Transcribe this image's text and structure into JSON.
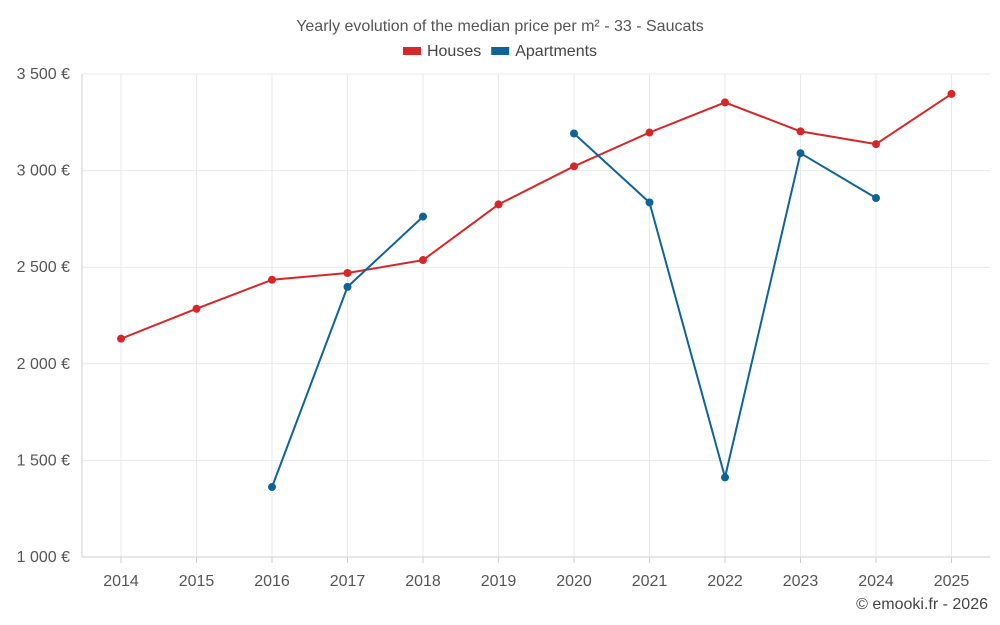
{
  "chart_data": {
    "type": "line",
    "title": "Yearly evolution of the median price per m² - 33 - Saucats",
    "categories": [
      "2014",
      "2015",
      "2016",
      "2017",
      "2018",
      "2019",
      "2020",
      "2021",
      "2022",
      "2023",
      "2024",
      "2025"
    ],
    "series": [
      {
        "name": "Houses",
        "color": "#d62728",
        "values": [
          2130,
          2285,
          2435,
          2470,
          2537,
          2825,
          3022,
          3197,
          3353,
          3203,
          3137,
          3397
        ]
      },
      {
        "name": "Apartments",
        "color": "#0e6496",
        "values": [
          null,
          null,
          1362,
          2398,
          2762,
          null,
          3192,
          2835,
          1412,
          3090,
          2858,
          null
        ]
      }
    ],
    "ylim": [
      1000,
      3500
    ],
    "yticks": [
      1000,
      1500,
      2000,
      2500,
      3000,
      3500
    ],
    "ytick_labels": [
      "1 000 €",
      "1 500 €",
      "2 000 €",
      "2 500 €",
      "3 000 €",
      "3 500 €"
    ],
    "xlabel": "",
    "ylabel": "",
    "legend": "top-center",
    "grid": true
  },
  "credit": "© emooki.fr - 2026"
}
